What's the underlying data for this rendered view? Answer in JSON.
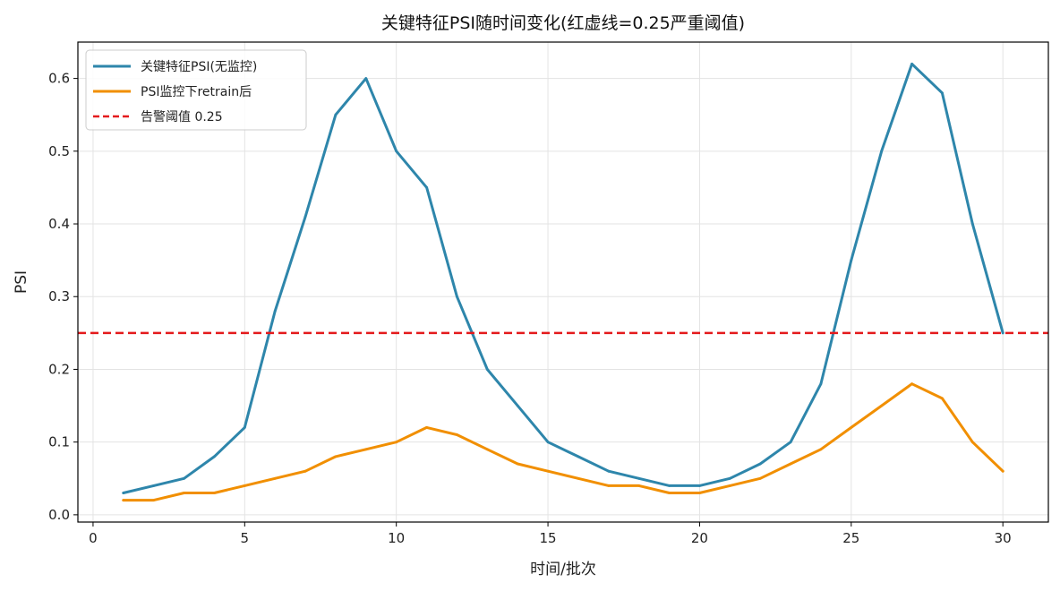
{
  "chart_data": {
    "type": "line",
    "title": "关键特征PSI随时间变化(红虚线=0.25严重阈值)",
    "xlabel": "时间/批次",
    "ylabel": "PSI",
    "xlim": [
      -0.5,
      31.5
    ],
    "ylim": [
      -0.01,
      0.65
    ],
    "x_ticks": [
      0,
      5,
      10,
      15,
      20,
      25,
      30
    ],
    "y_ticks": [
      0.0,
      0.1,
      0.2,
      0.3,
      0.4,
      0.5,
      0.6
    ],
    "grid": true,
    "legend_position": "top-left",
    "x": [
      1,
      2,
      3,
      4,
      5,
      6,
      7,
      8,
      9,
      10,
      11,
      12,
      13,
      14,
      15,
      16,
      17,
      18,
      19,
      20,
      21,
      22,
      23,
      24,
      25,
      26,
      27,
      28,
      29,
      30
    ],
    "series": [
      {
        "name": "关键特征PSI(无监控)",
        "color": "#2e86ab",
        "values": [
          0.03,
          0.04,
          0.05,
          0.08,
          0.12,
          0.28,
          0.41,
          0.55,
          0.6,
          0.5,
          0.45,
          0.3,
          0.2,
          0.15,
          0.1,
          0.08,
          0.06,
          0.05,
          0.04,
          0.04,
          0.05,
          0.07,
          0.1,
          0.18,
          0.35,
          0.5,
          0.62,
          0.58,
          0.4,
          0.25
        ]
      },
      {
        "name": "PSI监控下retrain后",
        "color": "#f18f01",
        "values": [
          0.02,
          0.02,
          0.03,
          0.03,
          0.04,
          0.05,
          0.06,
          0.08,
          0.09,
          0.1,
          0.12,
          0.11,
          0.09,
          0.07,
          0.06,
          0.05,
          0.04,
          0.04,
          0.03,
          0.03,
          0.04,
          0.05,
          0.07,
          0.09,
          0.12,
          0.15,
          0.18,
          0.16,
          0.1,
          0.06
        ]
      }
    ],
    "reference_lines": [
      {
        "name": "告警阈值 0.25",
        "y": 0.25,
        "color": "#e41a1c",
        "style": "dashed"
      }
    ]
  }
}
